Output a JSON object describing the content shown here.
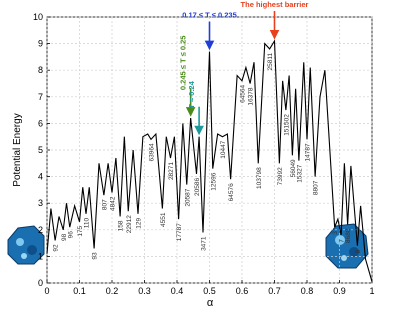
{
  "chart_data": {
    "type": "line",
    "xlabel": "α",
    "ylabel": "Potential Energy",
    "x": [
      0,
      0.012,
      0.025,
      0.037,
      0.05,
      0.06,
      0.07,
      0.085,
      0.1,
      0.11,
      0.12,
      0.13,
      0.145,
      0.16,
      0.175,
      0.188,
      0.2,
      0.212,
      0.225,
      0.238,
      0.25,
      0.265,
      0.28,
      0.295,
      0.31,
      0.32,
      0.335,
      0.355,
      0.367,
      0.38,
      0.392,
      0.405,
      0.418,
      0.43,
      0.442,
      0.46,
      0.468,
      0.48,
      0.5,
      0.51,
      0.525,
      0.54,
      0.555,
      0.565,
      0.585,
      0.6,
      0.612,
      0.625,
      0.637,
      0.65,
      0.67,
      0.685,
      0.7,
      0.715,
      0.725,
      0.735,
      0.745,
      0.755,
      0.765,
      0.775,
      0.79,
      0.8,
      0.81,
      0.825,
      0.84,
      0.855,
      0.885,
      0.895,
      0.905,
      0.915,
      0.925,
      0.935,
      0.955,
      0.965,
      0.98,
      1
    ],
    "values": [
      1.1,
      2.8,
      1.6,
      2.5,
      2.0,
      3.0,
      2.1,
      2.9,
      2.3,
      3.6,
      2.6,
      3.6,
      1.3,
      4.5,
      3.3,
      4.5,
      3.4,
      4.7,
      2.5,
      5.5,
      2.7,
      5.0,
      2.6,
      5.5,
      5.6,
      5.4,
      5.6,
      2.8,
      5.5,
      4.7,
      5.5,
      2.4,
      6.0,
      3.7,
      6.2,
      4.1,
      5.5,
      1.9,
      8.7,
      4.3,
      5.6,
      5.5,
      5.6,
      3.9,
      7.8,
      7.6,
      8.1,
      7.5,
      8.3,
      4.5,
      9.0,
      8.8,
      9.1,
      4.5,
      7.6,
      6.5,
      7.8,
      4.8,
      7.3,
      4.6,
      8.3,
      5.4,
      8.1,
      4.0,
      7.0,
      8.0,
      2.1,
      2.4,
      1.8,
      4.5,
      2.2,
      4.4,
      1.4,
      2.9,
      0.9,
      0.05
    ],
    "color": "#000000",
    "xlim": [
      0,
      1
    ],
    "xticks": [
      0,
      0.1,
      0.2,
      0.3,
      0.4,
      0.5,
      0.6,
      0.7,
      0.8,
      0.9,
      1
    ],
    "ylim": [
      0,
      10
    ],
    "yticks": [
      0,
      1,
      2,
      3,
      4,
      5,
      6,
      7,
      8,
      9,
      10
    ],
    "grid": true,
    "min_labels": [
      {
        "text": "92",
        "x": 0.025,
        "y": 1.6
      },
      {
        "text": "98",
        "x": 0.05,
        "y": 2.0
      },
      {
        "text": "96",
        "x": 0.07,
        "y": 2.1
      },
      {
        "text": "175",
        "x": 0.1,
        "y": 2.3
      },
      {
        "text": "110",
        "x": 0.12,
        "y": 2.6
      },
      {
        "text": "93",
        "x": 0.145,
        "y": 1.3
      },
      {
        "text": "807",
        "x": 0.175,
        "y": 3.3
      },
      {
        "text": "4842",
        "x": 0.2,
        "y": 3.4
      },
      {
        "text": "158",
        "x": 0.225,
        "y": 2.5
      },
      {
        "text": "22912",
        "x": 0.25,
        "y": 2.7
      },
      {
        "text": "129",
        "x": 0.28,
        "y": 2.6
      },
      {
        "text": "63964",
        "x": 0.32,
        "y": 5.4
      },
      {
        "text": "4551",
        "x": 0.355,
        "y": 2.8
      },
      {
        "text": "28271",
        "x": 0.38,
        "y": 4.7
      },
      {
        "text": "17787",
        "x": 0.405,
        "y": 2.4
      },
      {
        "text": "20587",
        "x": 0.43,
        "y": 3.7
      },
      {
        "text": "20586",
        "x": 0.46,
        "y": 4.1
      },
      {
        "text": "3471",
        "x": 0.48,
        "y": 1.9
      },
      {
        "text": "12596",
        "x": 0.51,
        "y": 4.3
      },
      {
        "text": "10447",
        "x": 0.54,
        "y": 5.5
      },
      {
        "text": "64576",
        "x": 0.565,
        "y": 3.9
      },
      {
        "text": "64564",
        "x": 0.6,
        "y": 7.6
      },
      {
        "text": "16378",
        "x": 0.625,
        "y": 7.5
      },
      {
        "text": "103798",
        "x": 0.65,
        "y": 4.5
      },
      {
        "text": "25811",
        "x": 0.685,
        "y": 8.8
      },
      {
        "text": "73992",
        "x": 0.715,
        "y": 4.5
      },
      {
        "text": "151502",
        "x": 0.735,
        "y": 6.5
      },
      {
        "text": "56049",
        "x": 0.755,
        "y": 4.8
      },
      {
        "text": "15327",
        "x": 0.775,
        "y": 4.6
      },
      {
        "text": "14787",
        "x": 0.8,
        "y": 5.4
      },
      {
        "text": "8807",
        "x": 0.825,
        "y": 4.0
      },
      {
        "text": "3",
        "x": 0.885,
        "y": 2.1
      },
      {
        "text": "7",
        "x": 0.905,
        "y": 1.8
      },
      {
        "text": "8688",
        "x": 0.925,
        "y": 2.2
      },
      {
        "text": "8",
        "x": 0.955,
        "y": 1.4
      }
    ],
    "annotations": [
      {
        "text": "0.17 ≤ T ≤ 0.235",
        "x": 0.5,
        "y": 8.7,
        "color": "#1f3fd6",
        "vertical": false
      },
      {
        "text": "The highest barrier",
        "x": 0.7,
        "y": 9.1,
        "color": "#e8401c",
        "vertical": false
      },
      {
        "text": "0.245 ≤ T ≤ 0.25",
        "x": 0.442,
        "y": 6.2,
        "color": "#4a8a1a",
        "vertical": true
      },
      {
        "text": "T ≈ 0.24",
        "x": 0.468,
        "y": 5.5,
        "color": "#1a9a9a",
        "vertical": true
      }
    ]
  }
}
